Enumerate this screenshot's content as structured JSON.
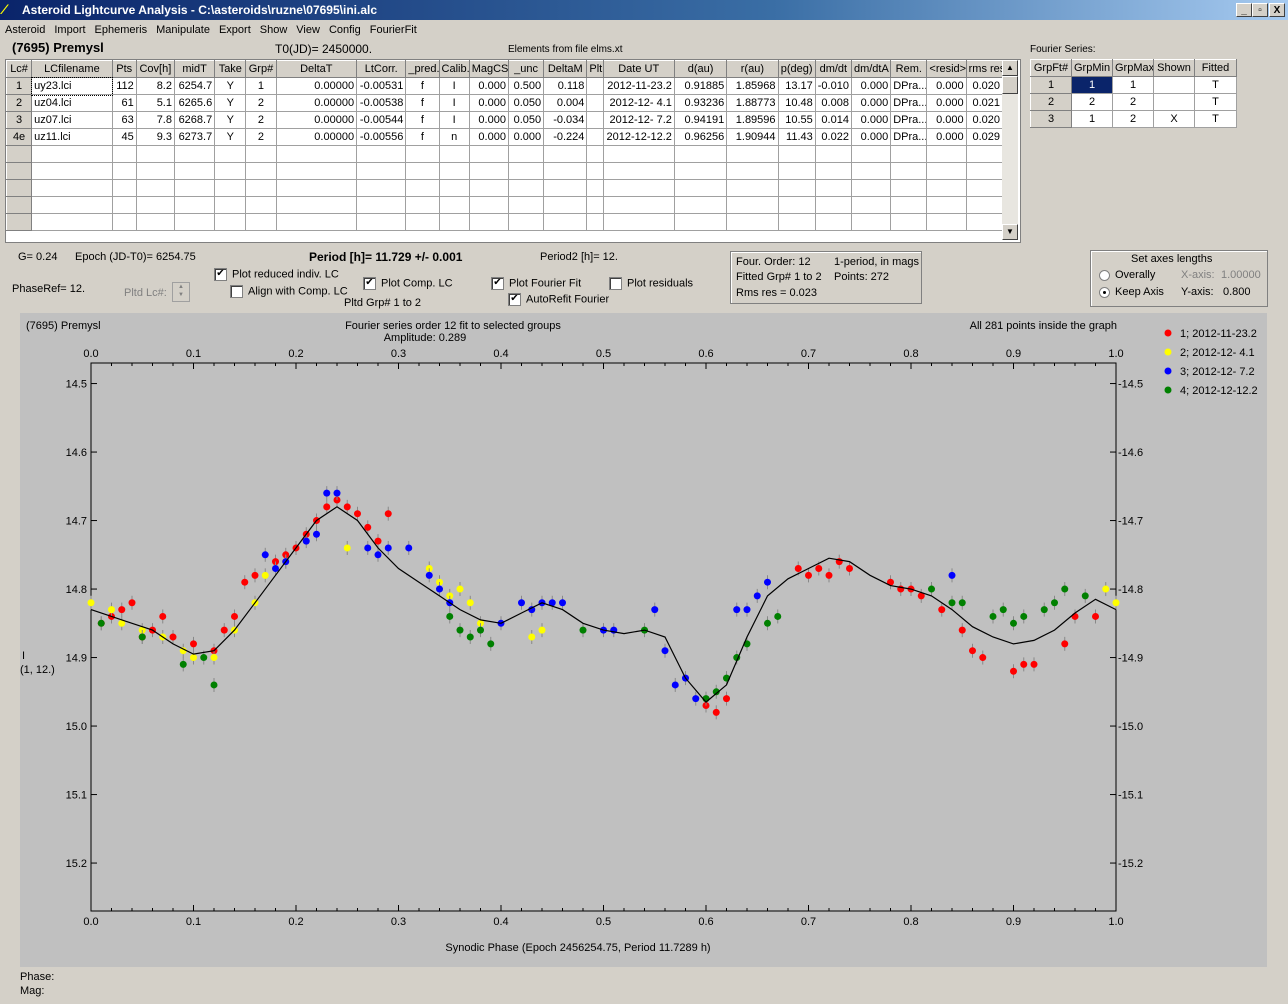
{
  "window": {
    "title": "Asteroid Lightcurve Analysis - C:\\asteroids\\ruzne\\07695\\ini.alc",
    "icon": "app-logo-icon",
    "minimize": "_",
    "restore": "▫",
    "close": "X"
  },
  "menu": [
    "Asteroid",
    "Import",
    "Ephemeris",
    "Manipulate",
    "Export",
    "Show",
    "View",
    "Config",
    "FourierFit"
  ],
  "header": {
    "asteroid": "(7695) Premysl",
    "t0": "T0(JD)= 2450000.",
    "elements": "Elements from file elms.xt",
    "fourier_series_title": "Fourier Series:"
  },
  "lc_table": {
    "columns": [
      "Lc#",
      "LCfilename",
      "Pts",
      "Cov[h]",
      "midT",
      "Take",
      "Grp#",
      "DeltaT",
      "LtCorr.",
      "_pred.",
      "Calib.",
      "MagCS",
      "_unc",
      "DeltaM",
      "Plt",
      "Date UT",
      "d(au)",
      "r(au)",
      "p(deg)",
      "dm/dt",
      "dm/dtA",
      "Rem.",
      "<resid>",
      "rms res"
    ],
    "rows": [
      [
        "1",
        "uy23.lci",
        "112",
        "8.2",
        "6254.7",
        "Y",
        "1",
        "0.00000",
        "-0.00531",
        "f",
        "I",
        "0.000",
        "0.500",
        "0.118",
        "",
        "2012-11-23.2",
        "0.91885",
        "1.85968",
        "13.17",
        "-0.010",
        "0.000",
        "DPra...",
        "0.000",
        "0.020"
      ],
      [
        "2",
        "uz04.lci",
        "61",
        "5.1",
        "6265.6",
        "Y",
        "2",
        "0.00000",
        "-0.00538",
        "f",
        "I",
        "0.000",
        "0.050",
        "0.004",
        "",
        "2012-12- 4.1",
        "0.93236",
        "1.88773",
        "10.48",
        "0.008",
        "0.000",
        "DPra...",
        "0.000",
        "0.021"
      ],
      [
        "3",
        "uz07.lci",
        "63",
        "7.8",
        "6268.7",
        "Y",
        "2",
        "0.00000",
        "-0.00544",
        "f",
        "I",
        "0.000",
        "0.050",
        "-0.034",
        "",
        "2012-12- 7.2",
        "0.94191",
        "1.89596",
        "10.55",
        "0.014",
        "0.000",
        "DPra...",
        "0.000",
        "0.020"
      ],
      [
        "4e",
        "uz11.lci",
        "45",
        "9.3",
        "6273.7",
        "Y",
        "2",
        "0.00000",
        "-0.00556",
        "f",
        "n",
        "0.000",
        "0.000",
        "-0.224",
        "",
        "2012-12-12.2",
        "0.96256",
        "1.90944",
        "11.43",
        "0.022",
        "0.000",
        "DPra...",
        "0.000",
        "0.029"
      ]
    ],
    "empty_rows": 5
  },
  "fourier_table": {
    "columns": [
      "GrpFt#",
      "GrpMin",
      "GrpMax",
      "Shown",
      "Fitted"
    ],
    "rows": [
      [
        "1",
        "1",
        "1",
        "",
        "T"
      ],
      [
        "2",
        "2",
        "2",
        "",
        "T"
      ],
      [
        "3",
        "1",
        "2",
        "X",
        "T"
      ]
    ]
  },
  "info": {
    "g": "G= 0.24",
    "epoch": "Epoch (JD-T0)= 6254.75",
    "period": "Period [h]= 11.729 +/- 0.001",
    "period2": "Period2 [h]= 12.",
    "phaseref": "PhaseRef= 12.",
    "pltd_lc": "Pltd Lc#:",
    "pltd_grp": "Pltd Grp#  1   to   2"
  },
  "options": {
    "plot_reduced": {
      "label": "Plot reduced indiv. LC",
      "checked": true
    },
    "align_comp": {
      "label": "Align with Comp. LC",
      "checked": false
    },
    "plot_comp": {
      "label": "Plot Comp. LC",
      "checked": true
    },
    "plot_fourier": {
      "label": "Plot Fourier Fit",
      "checked": true
    },
    "plot_residuals": {
      "label": "Plot residuals",
      "checked": false
    },
    "autorefit": {
      "label": "AutoRefit Fourier",
      "checked": true
    }
  },
  "fit_panel": {
    "order": "Four. Order: 12",
    "mode": "1-period, in mags",
    "grp": "Fitted Grp# 1 to 2",
    "points": "Points: 272",
    "rms": "Rms res     = 0.023"
  },
  "axes_panel": {
    "title": "Set axes lengths",
    "overall": "Overally",
    "keep": "Keep Axis",
    "xaxis_label": "X-axis:",
    "xaxis_value": "1.00000",
    "yaxis_label": "Y-axis:",
    "yaxis_value": "0.800"
  },
  "plot": {
    "top_left": "(7695) Premysl",
    "subtitle1": "Fourier series order 12 fit to selected groups",
    "subtitle2": "Amplitude: 0.289",
    "top_right": "All 281 points inside the graph",
    "xlabel": "Synodic Phase (Epoch 2456254.75, Period 11.7289 h)",
    "ylabel_1": "I",
    "ylabel_2": "(1, 12.)"
  },
  "status": {
    "phase": "Phase:",
    "mag": "Mag:"
  },
  "chart_data": {
    "type": "scatter",
    "xlim": [
      0,
      1
    ],
    "ylim": [
      15.27,
      14.47
    ],
    "xticks": [
      "0.0",
      "0.1",
      "0.2",
      "0.3",
      "0.4",
      "0.5",
      "0.6",
      "0.7",
      "0.8",
      "0.9",
      "1.0"
    ],
    "yticks": [
      "14.5",
      "14.6",
      "14.7",
      "14.8",
      "14.9",
      "15.0",
      "15.1",
      "15.2"
    ],
    "grid": false,
    "legend": "top-right",
    "y_inverted": true,
    "series": [
      {
        "name": "1; 2012-11-23.2",
        "color": "#ff0000",
        "points": [
          [
            0.01,
            14.85
          ],
          [
            0.02,
            14.84
          ],
          [
            0.03,
            14.83
          ],
          [
            0.04,
            14.82
          ],
          [
            0.05,
            14.87
          ],
          [
            0.06,
            14.86
          ],
          [
            0.07,
            14.84
          ],
          [
            0.08,
            14.87
          ],
          [
            0.1,
            14.88
          ],
          [
            0.12,
            14.89
          ],
          [
            0.13,
            14.86
          ],
          [
            0.14,
            14.84
          ],
          [
            0.15,
            14.79
          ],
          [
            0.16,
            14.78
          ],
          [
            0.18,
            14.76
          ],
          [
            0.19,
            14.75
          ],
          [
            0.2,
            14.74
          ],
          [
            0.21,
            14.72
          ],
          [
            0.22,
            14.7
          ],
          [
            0.23,
            14.68
          ],
          [
            0.24,
            14.67
          ],
          [
            0.25,
            14.68
          ],
          [
            0.26,
            14.69
          ],
          [
            0.27,
            14.71
          ],
          [
            0.28,
            14.73
          ],
          [
            0.29,
            14.69
          ],
          [
            0.69,
            14.77
          ],
          [
            0.7,
            14.78
          ],
          [
            0.71,
            14.77
          ],
          [
            0.72,
            14.78
          ],
          [
            0.73,
            14.76
          ],
          [
            0.74,
            14.77
          ],
          [
            0.78,
            14.79
          ],
          [
            0.79,
            14.8
          ],
          [
            0.8,
            14.8
          ],
          [
            0.81,
            14.81
          ],
          [
            0.83,
            14.83
          ],
          [
            0.85,
            14.86
          ],
          [
            0.86,
            14.89
          ],
          [
            0.87,
            14.9
          ],
          [
            0.9,
            14.92
          ],
          [
            0.91,
            14.91
          ],
          [
            0.92,
            14.91
          ],
          [
            0.95,
            14.88
          ],
          [
            0.96,
            14.84
          ],
          [
            0.98,
            14.84
          ],
          [
            0.6,
            14.97
          ],
          [
            0.61,
            14.98
          ],
          [
            0.62,
            14.96
          ]
        ]
      },
      {
        "name": "2; 2012-12- 4.1",
        "color": "#ffff00",
        "points": [
          [
            0.0,
            14.82
          ],
          [
            0.02,
            14.83
          ],
          [
            0.03,
            14.85
          ],
          [
            0.05,
            14.86
          ],
          [
            0.07,
            14.87
          ],
          [
            0.09,
            14.89
          ],
          [
            0.1,
            14.9
          ],
          [
            0.12,
            14.9
          ],
          [
            0.14,
            14.86
          ],
          [
            0.16,
            14.82
          ],
          [
            0.17,
            14.78
          ],
          [
            0.18,
            14.77
          ],
          [
            0.19,
            14.76
          ],
          [
            0.25,
            14.74
          ],
          [
            0.33,
            14.77
          ],
          [
            0.34,
            14.79
          ],
          [
            0.35,
            14.81
          ],
          [
            0.36,
            14.8
          ],
          [
            0.37,
            14.82
          ],
          [
            0.38,
            14.85
          ],
          [
            0.43,
            14.87
          ],
          [
            0.44,
            14.86
          ],
          [
            1.0,
            14.82
          ],
          [
            0.99,
            14.8
          ]
        ]
      },
      {
        "name": "3; 2012-12- 7.2",
        "color": "#0000ff",
        "points": [
          [
            0.17,
            14.75
          ],
          [
            0.18,
            14.77
          ],
          [
            0.19,
            14.76
          ],
          [
            0.21,
            14.73
          ],
          [
            0.22,
            14.72
          ],
          [
            0.23,
            14.66
          ],
          [
            0.24,
            14.66
          ],
          [
            0.27,
            14.74
          ],
          [
            0.28,
            14.75
          ],
          [
            0.29,
            14.74
          ],
          [
            0.31,
            14.74
          ],
          [
            0.33,
            14.78
          ],
          [
            0.34,
            14.8
          ],
          [
            0.35,
            14.82
          ],
          [
            0.4,
            14.85
          ],
          [
            0.42,
            14.82
          ],
          [
            0.43,
            14.83
          ],
          [
            0.44,
            14.82
          ],
          [
            0.45,
            14.82
          ],
          [
            0.46,
            14.82
          ],
          [
            0.5,
            14.86
          ],
          [
            0.51,
            14.86
          ],
          [
            0.55,
            14.83
          ],
          [
            0.56,
            14.89
          ],
          [
            0.57,
            14.94
          ],
          [
            0.58,
            14.93
          ],
          [
            0.59,
            14.96
          ],
          [
            0.63,
            14.83
          ],
          [
            0.64,
            14.83
          ],
          [
            0.65,
            14.81
          ],
          [
            0.66,
            14.79
          ],
          [
            0.84,
            14.78
          ]
        ]
      },
      {
        "name": "4; 2012-12-12.2",
        "color": "#008000",
        "points": [
          [
            0.01,
            14.85
          ],
          [
            0.05,
            14.87
          ],
          [
            0.09,
            14.91
          ],
          [
            0.11,
            14.9
          ],
          [
            0.12,
            14.94
          ],
          [
            0.35,
            14.84
          ],
          [
            0.36,
            14.86
          ],
          [
            0.37,
            14.87
          ],
          [
            0.38,
            14.86
          ],
          [
            0.39,
            14.88
          ],
          [
            0.48,
            14.86
          ],
          [
            0.54,
            14.86
          ],
          [
            0.6,
            14.96
          ],
          [
            0.61,
            14.95
          ],
          [
            0.62,
            14.93
          ],
          [
            0.63,
            14.9
          ],
          [
            0.64,
            14.88
          ],
          [
            0.66,
            14.85
          ],
          [
            0.67,
            14.84
          ],
          [
            0.82,
            14.8
          ],
          [
            0.84,
            14.82
          ],
          [
            0.85,
            14.82
          ],
          [
            0.88,
            14.84
          ],
          [
            0.89,
            14.83
          ],
          [
            0.9,
            14.85
          ],
          [
            0.91,
            14.84
          ],
          [
            0.93,
            14.83
          ],
          [
            0.94,
            14.82
          ],
          [
            0.95,
            14.8
          ],
          [
            0.97,
            14.81
          ]
        ]
      }
    ],
    "fit_curve": [
      [
        0.0,
        14.83
      ],
      [
        0.02,
        14.84
      ],
      [
        0.04,
        14.85
      ],
      [
        0.06,
        14.86
      ],
      [
        0.08,
        14.88
      ],
      [
        0.1,
        14.895
      ],
      [
        0.12,
        14.89
      ],
      [
        0.14,
        14.86
      ],
      [
        0.16,
        14.82
      ],
      [
        0.18,
        14.78
      ],
      [
        0.2,
        14.74
      ],
      [
        0.22,
        14.7
      ],
      [
        0.24,
        14.68
      ],
      [
        0.26,
        14.7
      ],
      [
        0.28,
        14.74
      ],
      [
        0.3,
        14.77
      ],
      [
        0.32,
        14.79
      ],
      [
        0.34,
        14.81
      ],
      [
        0.36,
        14.83
      ],
      [
        0.38,
        14.845
      ],
      [
        0.4,
        14.85
      ],
      [
        0.42,
        14.835
      ],
      [
        0.44,
        14.82
      ],
      [
        0.46,
        14.83
      ],
      [
        0.48,
        14.85
      ],
      [
        0.5,
        14.86
      ],
      [
        0.52,
        14.865
      ],
      [
        0.54,
        14.86
      ],
      [
        0.56,
        14.87
      ],
      [
        0.58,
        14.93
      ],
      [
        0.6,
        14.965
      ],
      [
        0.62,
        14.94
      ],
      [
        0.64,
        14.87
      ],
      [
        0.66,
        14.81
      ],
      [
        0.68,
        14.785
      ],
      [
        0.7,
        14.77
      ],
      [
        0.72,
        14.755
      ],
      [
        0.74,
        14.76
      ],
      [
        0.76,
        14.78
      ],
      [
        0.78,
        14.795
      ],
      [
        0.8,
        14.8
      ],
      [
        0.82,
        14.81
      ],
      [
        0.84,
        14.83
      ],
      [
        0.86,
        14.855
      ],
      [
        0.88,
        14.87
      ],
      [
        0.9,
        14.88
      ],
      [
        0.92,
        14.875
      ],
      [
        0.94,
        14.86
      ],
      [
        0.96,
        14.835
      ],
      [
        0.98,
        14.815
      ],
      [
        1.0,
        14.83
      ]
    ]
  }
}
